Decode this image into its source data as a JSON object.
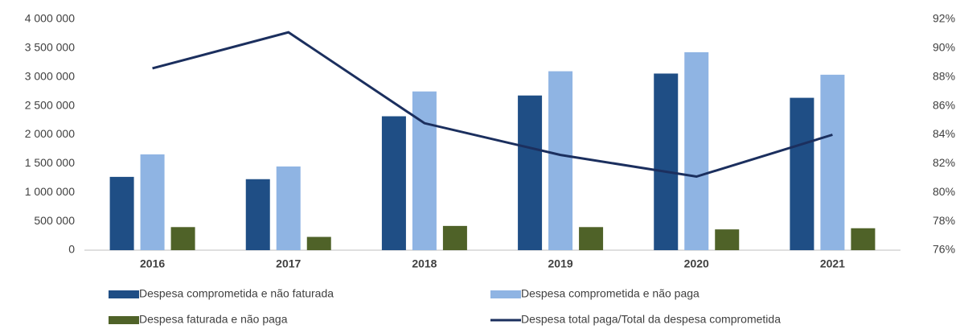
{
  "chart_data": {
    "type": "bar_line",
    "categories": [
      "2016",
      "2017",
      "2018",
      "2019",
      "2020",
      "2021"
    ],
    "series": [
      {
        "name": "Despesa comprometida e não faturada",
        "color": "#1f4e85",
        "values": [
          1270000,
          1230000,
          2320000,
          2680000,
          3060000,
          2640000
        ]
      },
      {
        "name": "Despesa comprometida e não paga",
        "color": "#8fb4e3",
        "values": [
          1660000,
          1450000,
          2750000,
          3100000,
          3430000,
          3040000
        ]
      },
      {
        "name": "Despesa faturada e não paga",
        "color": "#4f6228",
        "values": [
          400000,
          230000,
          420000,
          400000,
          360000,
          380000
        ]
      },
      {
        "name": "Despesa total paga/Total da despesa comprometida",
        "color": "#1b2f5e",
        "type": "line",
        "axis": "y2",
        "values": [
          88.6,
          91.1,
          84.8,
          82.6,
          81.1,
          84.0
        ]
      }
    ],
    "ylim": [
      0,
      4000000
    ],
    "yticks": [
      0,
      {
        "value": 500000,
        "label": "500 000"
      },
      {
        "value": 1000000,
        "label": "1 000 000"
      },
      {
        "value": 1500000,
        "label": "1 500 000"
      },
      {
        "value": 2000000,
        "label": "2 000 000"
      },
      {
        "value": 2500000,
        "label": "2 500 000"
      },
      {
        "value": 3000000,
        "label": "3 000 000"
      },
      {
        "value": 3500000,
        "label": "3 500 000"
      },
      {
        "value": 4000000,
        "label": "4 000 000"
      }
    ],
    "y2lim": [
      76,
      92
    ],
    "y2ticks": [
      {
        "value": 76,
        "label": "76%"
      },
      {
        "value": 78,
        "label": "78%"
      },
      {
        "value": 80,
        "label": "80%"
      },
      {
        "value": 82,
        "label": "82%"
      },
      {
        "value": 84,
        "label": "84%"
      },
      {
        "value": 86,
        "label": "86%"
      },
      {
        "value": 88,
        "label": "88%"
      },
      {
        "value": 90,
        "label": "90%"
      },
      {
        "value": 92,
        "label": "92%"
      }
    ],
    "legend": "bottom"
  }
}
